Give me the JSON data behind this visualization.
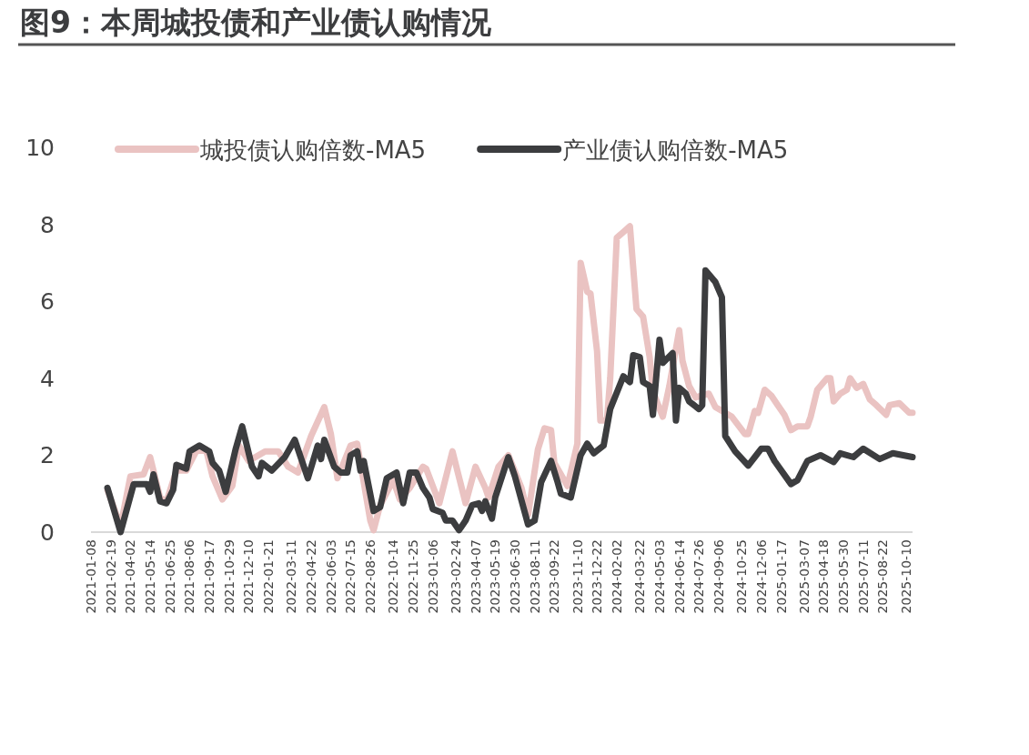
{
  "chart_data": {
    "type": "line",
    "title": "图9：本周城投债和产业债认购情况",
    "legend": "top",
    "xlim": [
      "2021-01-08",
      "2025-10-24"
    ],
    "ylim": [
      0,
      10
    ],
    "yticks": [
      0,
      2,
      4,
      6,
      8,
      10
    ],
    "xticks": [
      "2021-01-08",
      "2021-02-19",
      "2021-04-02",
      "2021-05-14",
      "2021-06-25",
      "2021-08-06",
      "2021-09-17",
      "2021-10-29",
      "2021-12-10",
      "2022-01-21",
      "2022-03-11",
      "2022-04-22",
      "2022-06-03",
      "2022-07-15",
      "2022-08-26",
      "2022-10-14",
      "2022-11-25",
      "2023-01-06",
      "2023-02-24",
      "2023-04-07",
      "2023-05-19",
      "2023-06-30",
      "2023-08-11",
      "2023-09-22",
      "2023-11-10",
      "2023-12-22",
      "2024-02-02",
      "2024-03-22",
      "2024-05-03",
      "2024-06-14",
      "2024-07-26",
      "2024-09-06",
      "2024-10-25",
      "2024-12-06",
      "2025-01-17",
      "2025-03-07",
      "2025-04-18",
      "2025-05-30",
      "2025-07-11",
      "2025-08-22",
      "2025-10-10"
    ],
    "series": [
      {
        "name": "城投债认购倍数-MA5",
        "color": "#eac3c2",
        "x": [
          "2021-02-12",
          "2021-03-12",
          "2021-04-02",
          "2021-04-30",
          "2021-05-14",
          "2021-06-04",
          "2021-06-18",
          "2021-07-09",
          "2021-07-30",
          "2021-08-20",
          "2021-09-10",
          "2021-09-24",
          "2021-10-15",
          "2021-11-05",
          "2021-11-19",
          "2021-12-10",
          "2022-01-14",
          "2022-02-11",
          "2022-03-04",
          "2022-03-25",
          "2022-04-22",
          "2022-05-20",
          "2022-06-03",
          "2022-06-17",
          "2022-07-15",
          "2022-07-29",
          "2022-08-26",
          "2022-09-02",
          "2022-09-16",
          "2022-10-14",
          "2022-10-28",
          "2022-11-18",
          "2022-12-16",
          "2022-12-23",
          "2023-01-20",
          "2023-02-17",
          "2023-03-17",
          "2023-04-07",
          "2023-04-28",
          "2023-05-05",
          "2023-05-26",
          "2023-06-16",
          "2023-07-14",
          "2023-07-28",
          "2023-08-18",
          "2023-09-01",
          "2023-09-15",
          "2023-09-22",
          "2023-10-20",
          "2023-11-10",
          "2023-11-17",
          "2023-12-01",
          "2023-12-08",
          "2023-12-22",
          "2023-12-29",
          "2024-01-12",
          "2024-01-19",
          "2024-02-02",
          "2024-02-16",
          "2024-03-01",
          "2024-03-15",
          "2024-03-29",
          "2024-04-12",
          "2024-04-19",
          "2024-05-10",
          "2024-05-24",
          "2024-06-14",
          "2024-06-21",
          "2024-07-05",
          "2024-07-19",
          "2024-08-16",
          "2024-08-30",
          "2024-10-04",
          "2024-11-01",
          "2024-11-08",
          "2024-11-22",
          "2024-11-29",
          "2024-12-13",
          "2024-12-27",
          "2025-01-10",
          "2025-01-24",
          "2025-02-07",
          "2025-02-21",
          "2025-03-14",
          "2025-03-21",
          "2025-04-04",
          "2025-04-25",
          "2025-05-02",
          "2025-05-09",
          "2025-05-23",
          "2025-06-06",
          "2025-06-13",
          "2025-06-27",
          "2025-07-11",
          "2025-07-25",
          "2025-08-08",
          "2025-08-29",
          "2025-09-05",
          "2025-09-26",
          "2025-10-17",
          "2025-10-24"
        ],
        "values": [
          1.1,
          0.15,
          1.45,
          1.5,
          1.95,
          0.9,
          0.8,
          1.6,
          1.6,
          2.1,
          2.15,
          1.45,
          0.85,
          1.2,
          2.25,
          1.85,
          2.1,
          2.1,
          1.7,
          1.55,
          2.5,
          3.25,
          2.55,
          1.4,
          2.25,
          2.3,
          0.3,
          0.05,
          0.7,
          1.35,
          0.85,
          1.15,
          1.7,
          1.65,
          0.75,
          2.1,
          0.75,
          1.7,
          1.15,
          0.9,
          1.7,
          2.0,
          1.15,
          0.45,
          2.15,
          2.7,
          2.65,
          1.8,
          1.2,
          2.3,
          7.0,
          6.25,
          6.2,
          4.7,
          2.9,
          2.9,
          4.0,
          7.65,
          7.8,
          7.95,
          5.8,
          5.6,
          4.55,
          3.65,
          3.0,
          3.8,
          5.25,
          4.45,
          3.8,
          3.5,
          3.6,
          3.25,
          3.0,
          2.55,
          2.55,
          3.15,
          3.1,
          3.7,
          3.55,
          3.3,
          3.05,
          2.65,
          2.75,
          2.75,
          3.0,
          3.7,
          4.0,
          4.0,
          3.4,
          3.6,
          3.7,
          4.0,
          3.75,
          3.85,
          3.45,
          3.3,
          3.05,
          3.3,
          3.35,
          3.1,
          3.1
        ]
      },
      {
        "name": "产业债认购倍数-MA5",
        "color": "#3c3d3f",
        "x": [
          "2021-02-12",
          "2021-03-12",
          "2021-04-09",
          "2021-05-07",
          "2021-05-14",
          "2021-05-21",
          "2021-06-04",
          "2021-06-18",
          "2021-07-02",
          "2021-07-09",
          "2021-07-30",
          "2021-08-06",
          "2021-08-27",
          "2021-09-17",
          "2021-09-24",
          "2021-10-08",
          "2021-10-22",
          "2021-11-12",
          "2021-11-26",
          "2021-12-17",
          "2021-12-31",
          "2022-01-07",
          "2022-01-28",
          "2022-02-25",
          "2022-03-18",
          "2022-04-15",
          "2022-05-06",
          "2022-05-13",
          "2022-05-20",
          "2022-06-10",
          "2022-06-24",
          "2022-07-08",
          "2022-07-15",
          "2022-07-29",
          "2022-08-05",
          "2022-08-12",
          "2022-09-02",
          "2022-09-16",
          "2022-09-30",
          "2022-10-21",
          "2022-11-04",
          "2022-11-18",
          "2022-12-02",
          "2022-12-16",
          "2022-12-30",
          "2023-01-06",
          "2023-01-27",
          "2023-02-03",
          "2023-02-17",
          "2023-03-03",
          "2023-03-17",
          "2023-03-31",
          "2023-04-14",
          "2023-04-21",
          "2023-04-28",
          "2023-05-12",
          "2023-05-19",
          "2023-06-16",
          "2023-06-30",
          "2023-07-28",
          "2023-08-11",
          "2023-08-25",
          "2023-09-15",
          "2023-09-29",
          "2023-10-06",
          "2023-10-27",
          "2023-11-17",
          "2023-12-01",
          "2023-12-15",
          "2024-01-05",
          "2024-01-19",
          "2024-02-16",
          "2024-03-01",
          "2024-03-08",
          "2024-03-22",
          "2024-03-29",
          "2024-04-12",
          "2024-04-19",
          "2024-05-03",
          "2024-05-10",
          "2024-05-31",
          "2024-06-07",
          "2024-06-14",
          "2024-06-28",
          "2024-07-05",
          "2024-07-26",
          "2024-08-02",
          "2024-08-09",
          "2024-08-30",
          "2024-09-13",
          "2024-09-20",
          "2024-10-11",
          "2024-11-08",
          "2024-11-22",
          "2024-12-06",
          "2024-12-20",
          "2025-01-03",
          "2025-02-07",
          "2025-02-21",
          "2025-03-14",
          "2025-04-11",
          "2025-05-09",
          "2025-05-23",
          "2025-06-20",
          "2025-07-11",
          "2025-08-15",
          "2025-09-12",
          "2025-10-24"
        ],
        "values": [
          1.15,
          0.0,
          1.25,
          1.25,
          1.05,
          1.5,
          0.8,
          0.75,
          1.1,
          1.75,
          1.65,
          2.1,
          2.25,
          2.1,
          1.8,
          1.6,
          1.05,
          2.15,
          2.75,
          1.7,
          1.45,
          1.8,
          1.6,
          1.95,
          2.4,
          1.4,
          2.25,
          1.9,
          2.4,
          1.7,
          1.55,
          1.55,
          2.0,
          2.1,
          1.6,
          1.85,
          0.55,
          0.65,
          1.4,
          1.55,
          0.75,
          1.55,
          1.55,
          1.15,
          0.9,
          0.6,
          0.5,
          0.3,
          0.3,
          0.05,
          0.3,
          0.7,
          0.75,
          0.55,
          0.8,
          0.35,
          0.9,
          1.95,
          1.45,
          0.2,
          0.3,
          1.3,
          1.85,
          1.3,
          1.0,
          0.9,
          2.0,
          2.3,
          2.05,
          2.25,
          3.2,
          4.05,
          3.9,
          4.6,
          4.55,
          3.9,
          3.8,
          3.05,
          5.0,
          4.4,
          4.65,
          2.9,
          3.75,
          3.6,
          3.4,
          3.2,
          3.3,
          6.8,
          6.5,
          6.1,
          2.5,
          2.1,
          1.73,
          1.95,
          2.17,
          2.17,
          1.85,
          1.25,
          1.35,
          1.85,
          2.0,
          1.82,
          2.05,
          1.95,
          2.17,
          1.9,
          2.05,
          1.95
        ]
      }
    ]
  }
}
